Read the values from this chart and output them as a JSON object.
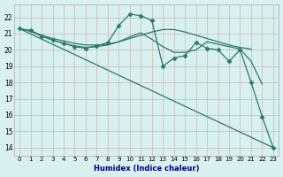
{
  "xlabel": "Humidex (Indice chaleur)",
  "xlim": [
    -0.5,
    23.5
  ],
  "ylim": [
    13.5,
    22.8
  ],
  "yticks": [
    14,
    15,
    16,
    17,
    18,
    19,
    20,
    21,
    22
  ],
  "xticks": [
    0,
    1,
    2,
    3,
    4,
    5,
    6,
    7,
    8,
    9,
    10,
    11,
    12,
    13,
    14,
    15,
    16,
    17,
    18,
    19,
    20,
    21,
    22,
    23
  ],
  "xtick_labels": [
    "0",
    "1",
    "2",
    "3",
    "4",
    "5",
    "6",
    "7",
    "8",
    "9",
    "10",
    "11",
    "12",
    "13",
    "14",
    "15",
    "16",
    "17",
    "18",
    "19",
    "20",
    "21",
    "22",
    "23"
  ],
  "bg_color": "#d8f0ee",
  "grid_color": "#c8b8b8",
  "line_color": "#2a7a6a",
  "line_width": 0.9,
  "marker": "D",
  "marker_size": 2.5,
  "series": [
    {
      "x": [
        0,
        1,
        2,
        3,
        4,
        5,
        6,
        7,
        8,
        9,
        10,
        11,
        12,
        13,
        14,
        15,
        16,
        17,
        18,
        19,
        20,
        21
      ],
      "y": [
        21.3,
        21.15,
        20.9,
        20.7,
        20.55,
        20.4,
        20.3,
        20.3,
        20.35,
        20.5,
        20.7,
        20.9,
        21.1,
        21.25,
        21.25,
        21.1,
        20.9,
        20.7,
        20.5,
        20.3,
        20.15,
        20.05
      ],
      "has_markers": false
    },
    {
      "x": [
        0,
        1,
        2,
        3,
        4,
        5,
        6,
        7,
        8,
        9,
        10,
        11,
        12,
        13,
        14,
        15,
        16,
        17,
        18,
        19,
        20,
        21,
        22
      ],
      "y": [
        21.3,
        21.15,
        20.85,
        20.6,
        20.4,
        20.25,
        20.15,
        20.2,
        20.3,
        20.5,
        20.8,
        21.05,
        20.65,
        20.2,
        19.85,
        19.85,
        20.0,
        20.5,
        20.35,
        20.2,
        20.05,
        19.3,
        17.9
      ],
      "has_markers": false
    },
    {
      "x": [
        0,
        1,
        2,
        3,
        4,
        5,
        6,
        7,
        8,
        9,
        10,
        11,
        12,
        13,
        14,
        15,
        16,
        17,
        18,
        19,
        20,
        21,
        22,
        23
      ],
      "y": [
        21.3,
        21.2,
        20.85,
        20.6,
        20.4,
        20.2,
        20.1,
        20.25,
        20.45,
        21.5,
        22.2,
        22.1,
        21.8,
        19.0,
        19.5,
        19.65,
        20.45,
        20.1,
        20.0,
        19.3,
        20.0,
        18.0,
        15.9,
        14.0
      ],
      "has_markers": true
    },
    {
      "x": [
        0,
        23
      ],
      "y": [
        21.3,
        14.0
      ],
      "has_markers": false
    }
  ]
}
